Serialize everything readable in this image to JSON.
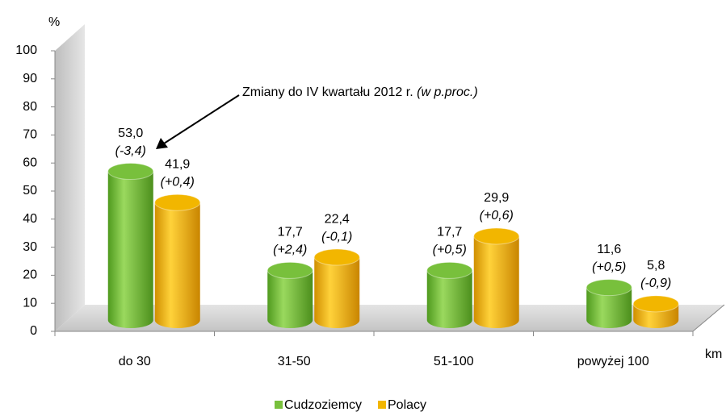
{
  "chart_data": {
    "type": "bar",
    "y_axis_label": "%",
    "x_axis_label": "km",
    "annotation": "Zmiany do IV kwartału 2012 r.",
    "annotation_note": "(w p.proc.)",
    "categories": [
      "do 30",
      "31-50",
      "51-100",
      "powyżej 100"
    ],
    "series": [
      {
        "name": "Cudzoziemcy",
        "color": "#78c03c",
        "values": [
          53.0,
          17.7,
          17.7,
          11.6
        ],
        "value_labels": [
          "53,0",
          "17,7",
          "17,7",
          "11,6"
        ],
        "change_labels": [
          "(-3,4)",
          "(+2,4)",
          "(+0,5)",
          "(+0,5)"
        ]
      },
      {
        "name": "Polacy",
        "color": "#f2b600",
        "values": [
          41.9,
          22.4,
          29.9,
          5.8
        ],
        "value_labels": [
          "41,9",
          "22,4",
          "29,9",
          "5,8"
        ],
        "change_labels": [
          "(+0,4)",
          "(-0,1)",
          "(+0,6)",
          "(-0,9)"
        ]
      }
    ],
    "ylim": [
      0,
      100
    ],
    "yticks": [
      0,
      10,
      20,
      30,
      40,
      50,
      60,
      70,
      80,
      90,
      100
    ]
  }
}
